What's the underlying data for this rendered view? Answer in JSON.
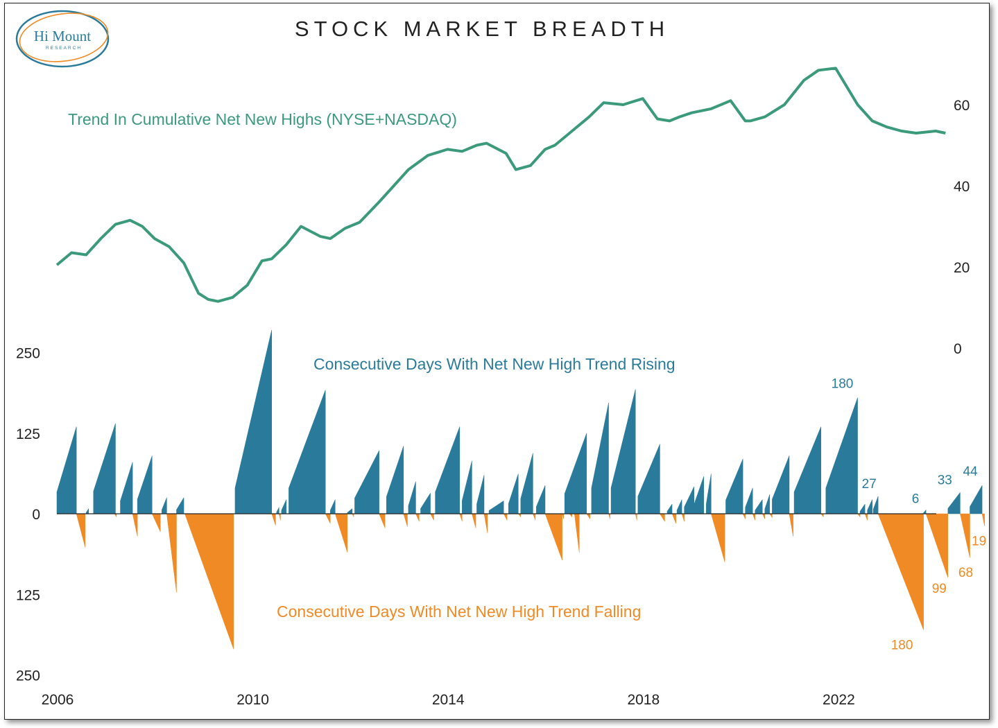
{
  "title": "STOCK MARKET BREADTH",
  "logo": {
    "name": "Hi Mount",
    "sub": "RESEARCH"
  },
  "colors": {
    "trend_line": "#3a9a7a",
    "rising": "#2a7b9b",
    "falling": "#ef8a25",
    "axis": "#222222"
  },
  "chart_data": [
    {
      "type": "line",
      "title": "Trend In Cumulative Net New Highs (NYSE+NASDAQ)",
      "axis_side": "right",
      "ylim": [
        0,
        70
      ],
      "yticks": [
        0,
        20,
        40,
        60
      ],
      "xlim": [
        2006,
        2024.6
      ],
      "series": [
        {
          "name": "Trend In Cumulative Net New Highs (NYSE+NASDAQ)",
          "x": [
            2006.0,
            2006.3,
            2006.6,
            2006.9,
            2007.2,
            2007.5,
            2007.75,
            2008.0,
            2008.3,
            2008.6,
            2008.9,
            2009.1,
            2009.3,
            2009.6,
            2009.9,
            2010.2,
            2010.4,
            2010.7,
            2011.0,
            2011.4,
            2011.6,
            2011.9,
            2012.2,
            2012.6,
            2012.9,
            2013.2,
            2013.6,
            2014.0,
            2014.3,
            2014.6,
            2014.8,
            2015.2,
            2015.4,
            2015.7,
            2016.0,
            2016.2,
            2016.5,
            2016.9,
            2017.2,
            2017.6,
            2018.0,
            2018.3,
            2018.55,
            2018.75,
            2019.0,
            2019.4,
            2019.8,
            2020.1,
            2020.2,
            2020.5,
            2020.9,
            2021.3,
            2021.6,
            2021.95,
            2022.1,
            2022.4,
            2022.7,
            2023.0,
            2023.3,
            2023.6,
            2024.0,
            2024.2
          ],
          "values": [
            20.5,
            23.5,
            23.0,
            27.0,
            30.5,
            31.5,
            30.0,
            27.0,
            25.0,
            21.0,
            13.5,
            12.0,
            11.5,
            12.5,
            15.5,
            21.5,
            22.0,
            25.5,
            30.0,
            27.5,
            27.0,
            29.5,
            31.0,
            36.0,
            40.0,
            44.0,
            47.5,
            49.0,
            48.5,
            50.0,
            50.5,
            48.0,
            44.0,
            45.0,
            49.0,
            50.0,
            53.0,
            57.0,
            60.5,
            60.0,
            61.5,
            56.5,
            56.0,
            57.0,
            58.0,
            59.0,
            61.0,
            56.0,
            56.0,
            57.0,
            60.0,
            66.0,
            68.5,
            69.0,
            66.0,
            60.0,
            56.0,
            54.5,
            53.5,
            53.0,
            53.5,
            53.0
          ]
        }
      ]
    },
    {
      "type": "area",
      "axis_side": "left",
      "ylim": [
        -250,
        250
      ],
      "yticks": [
        250,
        125,
        0,
        125,
        250
      ],
      "xlim": [
        2006,
        2024.6
      ],
      "xticks": [
        "2006",
        "2010",
        "2014",
        "2018",
        "2022"
      ],
      "series": [
        {
          "name": "Consecutive Days With Net New High Trend Rising",
          "runs": [
            [
              2006.0,
              2006.4,
              135
            ],
            [
              2006.6,
              2006.65,
              8
            ],
            [
              2006.75,
              2007.2,
              140
            ],
            [
              2007.3,
              2007.55,
              80
            ],
            [
              2007.65,
              2007.95,
              90
            ],
            [
              2008.15,
              2008.25,
              25
            ],
            [
              2008.45,
              2008.6,
              25
            ],
            [
              2009.65,
              2010.4,
              285
            ],
            [
              2010.5,
              2010.55,
              10
            ],
            [
              2010.6,
              2010.7,
              22
            ],
            [
              2010.75,
              2011.5,
              192
            ],
            [
              2011.6,
              2011.7,
              22
            ],
            [
              2011.95,
              2012.05,
              8
            ],
            [
              2012.1,
              2012.6,
              98
            ],
            [
              2012.75,
              2013.1,
              105
            ],
            [
              2013.2,
              2013.35,
              50
            ],
            [
              2013.45,
              2013.65,
              32
            ],
            [
              2013.75,
              2014.25,
              135
            ],
            [
              2014.3,
              2014.5,
              82
            ],
            [
              2014.6,
              2014.75,
              60
            ],
            [
              2014.85,
              2015.15,
              20
            ],
            [
              2015.25,
              2015.45,
              62
            ],
            [
              2015.5,
              2015.75,
              94
            ],
            [
              2015.82,
              2016.0,
              44
            ],
            [
              2016.4,
              2016.85,
              125
            ],
            [
              2016.95,
              2017.3,
              172
            ],
            [
              2017.35,
              2017.85,
              193
            ],
            [
              2017.9,
              2018.35,
              108
            ],
            [
              2018.5,
              2018.6,
              15
            ],
            [
              2018.7,
              2018.8,
              22
            ],
            [
              2018.85,
              2019.05,
              42
            ],
            [
              2019.05,
              2019.25,
              58
            ],
            [
              2019.3,
              2019.4,
              62
            ],
            [
              2019.7,
              2020.05,
              85
            ],
            [
              2020.1,
              2020.25,
              40
            ],
            [
              2020.3,
              2020.45,
              22
            ],
            [
              2020.5,
              2020.6,
              30
            ],
            [
              2020.65,
              2021.0,
              90
            ],
            [
              2021.1,
              2021.65,
              135
            ],
            [
              2021.75,
              2022.4,
              180
            ],
            [
              2022.45,
              2022.55,
              15
            ],
            [
              2022.6,
              2022.7,
              22
            ],
            [
              2022.72,
              2022.82,
              27
            ],
            [
              2023.75,
              2023.8,
              6
            ],
            [
              2024.25,
              2024.5,
              33
            ],
            [
              2024.7,
              2024.95,
              44
            ]
          ],
          "point_labels": [
            {
              "x": 2022.2,
              "value": 180,
              "label": "180"
            },
            {
              "x": 2022.75,
              "value": 27,
              "label": "27"
            },
            {
              "x": 2023.7,
              "value": 6,
              "label": "6"
            },
            {
              "x": 2024.3,
              "value": 33,
              "label": "33"
            },
            {
              "x": 2024.85,
              "value": 44,
              "label": "44"
            }
          ]
        },
        {
          "name": "Consecutive Days With Net New High Trend Falling",
          "runs": [
            [
              2006.4,
              2006.58,
              -52
            ],
            [
              2007.18,
              2007.22,
              -5
            ],
            [
              2007.55,
              2007.65,
              -35
            ],
            [
              2007.95,
              2008.12,
              -28
            ],
            [
              2008.25,
              2008.45,
              -122
            ],
            [
              2008.62,
              2009.62,
              -210
            ],
            [
              2010.4,
              2010.48,
              -18
            ],
            [
              2010.55,
              2010.58,
              -10
            ],
            [
              2011.5,
              2011.6,
              -15
            ],
            [
              2011.7,
              2011.95,
              -60
            ],
            [
              2012.05,
              2012.08,
              -5
            ],
            [
              2012.6,
              2012.72,
              -22
            ],
            [
              2013.1,
              2013.18,
              -20
            ],
            [
              2013.35,
              2013.42,
              -12
            ],
            [
              2013.65,
              2013.72,
              -10
            ],
            [
              2014.25,
              2014.3,
              -12
            ],
            [
              2014.5,
              2014.58,
              -22
            ],
            [
              2014.75,
              2014.82,
              -30
            ],
            [
              2015.15,
              2015.22,
              -10
            ],
            [
              2015.45,
              2015.5,
              -5
            ],
            [
              2015.75,
              2015.8,
              -10
            ],
            [
              2016.0,
              2016.35,
              -72
            ],
            [
              2016.35,
              2016.38,
              -8
            ],
            [
              2016.5,
              2016.55,
              -5
            ],
            [
              2016.6,
              2016.7,
              -60
            ],
            [
              2016.85,
              2016.92,
              -8
            ],
            [
              2017.3,
              2017.33,
              -8
            ],
            [
              2017.85,
              2017.88,
              -10
            ],
            [
              2018.35,
              2018.45,
              -12
            ],
            [
              2018.6,
              2018.68,
              -15
            ],
            [
              2018.8,
              2018.85,
              -12
            ],
            [
              2019.4,
              2019.68,
              -75
            ],
            [
              2020.05,
              2020.1,
              -8
            ],
            [
              2020.25,
              2020.3,
              -10
            ],
            [
              2020.45,
              2020.5,
              -8
            ],
            [
              2020.6,
              2020.65,
              -6
            ],
            [
              2021.0,
              2021.08,
              -35
            ],
            [
              2021.65,
              2021.7,
              -5
            ],
            [
              2022.4,
              2022.45,
              -5
            ],
            [
              2022.55,
              2022.6,
              -10
            ],
            [
              2022.82,
              2023.75,
              -180
            ],
            [
              2023.8,
              2024.25,
              -99
            ],
            [
              2024.5,
              2024.7,
              -68
            ],
            [
              2024.95,
              2025.0,
              -19
            ]
          ],
          "point_labels": [
            {
              "x": 2023.65,
              "value": -180,
              "label": "180"
            },
            {
              "x": 2024.3,
              "value": -99,
              "label": "99"
            },
            {
              "x": 2024.7,
              "value": -68,
              "label": "68"
            },
            {
              "x": 2025.0,
              "value": -19,
              "label": "19"
            }
          ]
        }
      ]
    }
  ]
}
